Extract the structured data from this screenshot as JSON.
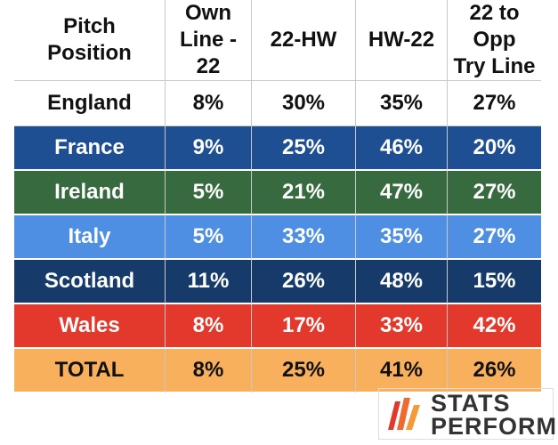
{
  "table": {
    "header": [
      [
        "Pitch",
        "Position"
      ],
      [
        "Own",
        "Line - 22"
      ],
      [
        "22-HW"
      ],
      [
        "HW-22"
      ],
      [
        "22 to Opp",
        "Try Line"
      ]
    ],
    "rows": [
      [
        "England",
        "8%",
        "30%",
        "35%",
        "27%"
      ],
      [
        "France",
        "9%",
        "25%",
        "46%",
        "20%"
      ],
      [
        "Ireland",
        "5%",
        "21%",
        "47%",
        "27%"
      ],
      [
        "Italy",
        "5%",
        "33%",
        "35%",
        "27%"
      ],
      [
        "Scotland",
        "11%",
        "26%",
        "48%",
        "15%"
      ],
      [
        "Wales",
        "8%",
        "17%",
        "33%",
        "42%"
      ],
      [
        "TOTAL",
        "8%",
        "25%",
        "41%",
        "26%"
      ]
    ]
  },
  "logo": {
    "lines": [
      "STATS",
      "PERFORM"
    ]
  }
}
